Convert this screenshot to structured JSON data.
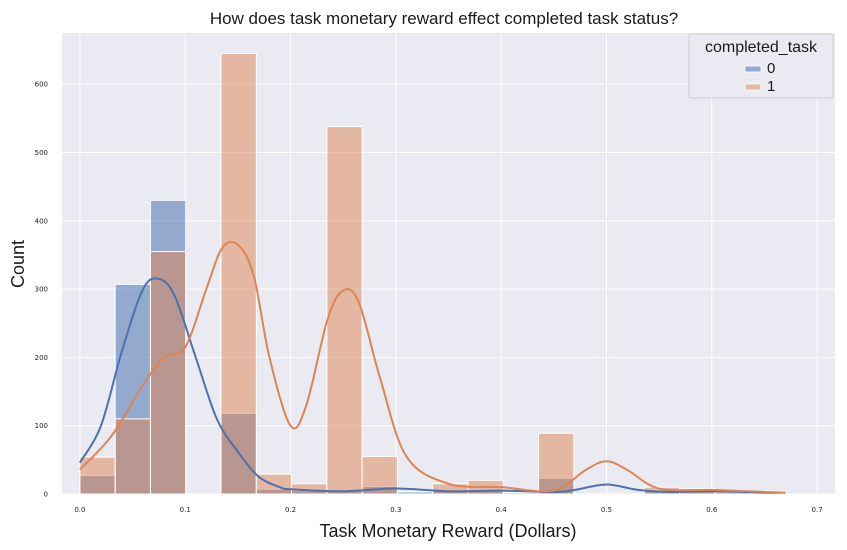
{
  "chart_data": {
    "type": "histogram",
    "title": "How does task monetary reward effect completed task status?",
    "xlabel": "Task Monetary Reward (Dollars)",
    "ylabel": "Count",
    "xlim": [
      -0.017,
      0.717
    ],
    "ylim": [
      0,
      675
    ],
    "xticks": [
      0.0,
      0.1,
      0.2,
      0.3,
      0.4,
      0.5,
      0.6,
      0.7
    ],
    "xtick_labels": [
      "0.0",
      "0.1",
      "0.2",
      "0.3",
      "0.4",
      "0.5",
      "0.6",
      "0.7"
    ],
    "yticks": [
      0,
      100,
      200,
      300,
      400,
      500,
      600
    ],
    "ytick_labels": [
      "0",
      "100",
      "200",
      "300",
      "400",
      "500",
      "600"
    ],
    "grid": true,
    "legend": {
      "title": "completed_task",
      "placement": "top-right",
      "entries": [
        "0",
        "1"
      ]
    },
    "bin_edges": [
      0.0,
      0.0335,
      0.067,
      0.1005,
      0.134,
      0.1675,
      0.201,
      0.2345,
      0.268,
      0.3015,
      0.335,
      0.3685,
      0.402,
      0.4355,
      0.469,
      0.5025,
      0.536,
      0.5695,
      0.603,
      0.6365,
      0.67
    ],
    "series": [
      {
        "name": "0",
        "color": "#4c72b0",
        "counts": [
          27,
          307,
          430,
          0,
          118,
          7,
          5,
          5,
          11,
          3,
          5,
          5,
          2,
          23,
          0,
          0,
          6,
          4,
          2,
          2
        ],
        "kde_x": [
          0.0,
          0.02,
          0.04,
          0.06,
          0.075,
          0.09,
          0.11,
          0.13,
          0.15,
          0.17,
          0.19,
          0.2,
          0.25,
          0.3,
          0.35,
          0.4,
          0.45,
          0.47,
          0.5,
          0.53,
          0.56,
          0.6,
          0.65,
          0.67
        ],
        "kde_y": [
          46,
          100,
          210,
          300,
          315,
          290,
          200,
          110,
          62,
          25,
          10,
          7,
          4,
          8,
          4,
          5,
          3,
          6,
          14,
          6,
          3,
          4,
          2,
          2
        ]
      },
      {
        "name": "1",
        "color": "#dd8452",
        "counts": [
          54,
          110,
          355,
          0,
          645,
          29,
          15,
          538,
          55,
          0,
          15,
          20,
          0,
          89,
          0,
          0,
          10,
          8,
          3,
          4
        ],
        "kde_x": [
          0.0,
          0.03,
          0.06,
          0.08,
          0.1,
          0.12,
          0.135,
          0.15,
          0.165,
          0.18,
          0.2,
          0.215,
          0.235,
          0.25,
          0.265,
          0.285,
          0.31,
          0.35,
          0.4,
          0.45,
          0.48,
          0.5,
          0.52,
          0.55,
          0.6,
          0.65,
          0.67
        ],
        "kde_y": [
          36,
          85,
          160,
          200,
          215,
          300,
          360,
          365,
          320,
          200,
          100,
          130,
          255,
          298,
          280,
          170,
          55,
          15,
          10,
          5,
          35,
          48,
          35,
          8,
          6,
          3,
          2
        ]
      }
    ]
  }
}
